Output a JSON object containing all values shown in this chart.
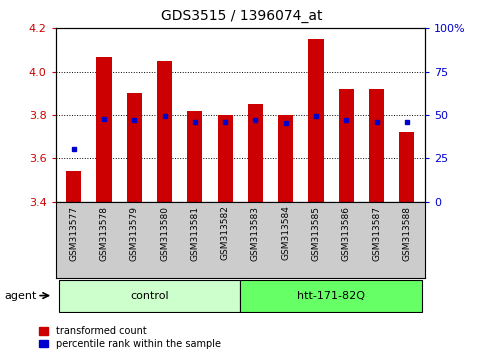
{
  "title": "GDS3515 / 1396074_at",
  "samples": [
    "GSM313577",
    "GSM313578",
    "GSM313579",
    "GSM313580",
    "GSM313581",
    "GSM313582",
    "GSM313583",
    "GSM313584",
    "GSM313585",
    "GSM313586",
    "GSM313587",
    "GSM313588"
  ],
  "red_values": [
    3.54,
    4.07,
    3.9,
    4.05,
    3.82,
    3.8,
    3.85,
    3.8,
    4.15,
    3.92,
    3.92,
    3.72
  ],
  "blue_values": [
    3.645,
    3.782,
    3.776,
    3.796,
    3.768,
    3.768,
    3.776,
    3.762,
    3.796,
    3.776,
    3.768,
    3.768
  ],
  "bar_bottom": 3.4,
  "ylim_left": [
    3.4,
    4.2
  ],
  "ylim_right": [
    0,
    100
  ],
  "yticks_left": [
    3.4,
    3.6,
    3.8,
    4.0,
    4.2
  ],
  "yticks_right": [
    0,
    25,
    50,
    75,
    100
  ],
  "ytick_labels_right": [
    "0",
    "25",
    "50",
    "75",
    "100%"
  ],
  "bar_color": "#cc0000",
  "blue_color": "#0000cc",
  "groups": [
    {
      "label": "control",
      "start": 0,
      "end": 6,
      "color": "#ccffcc"
    },
    {
      "label": "htt-171-82Q",
      "start": 6,
      "end": 12,
      "color": "#66ff66"
    }
  ],
  "agent_label": "agent",
  "legend_red": "transformed count",
  "legend_blue": "percentile rank within the sample",
  "bg_color": "#ffffff",
  "plot_bg_color": "#ffffff",
  "tick_label_color_left": "#cc0000",
  "tick_label_color_right": "#0000cc",
  "bar_width": 0.5,
  "figsize": [
    4.83,
    3.54
  ],
  "dpi": 100
}
